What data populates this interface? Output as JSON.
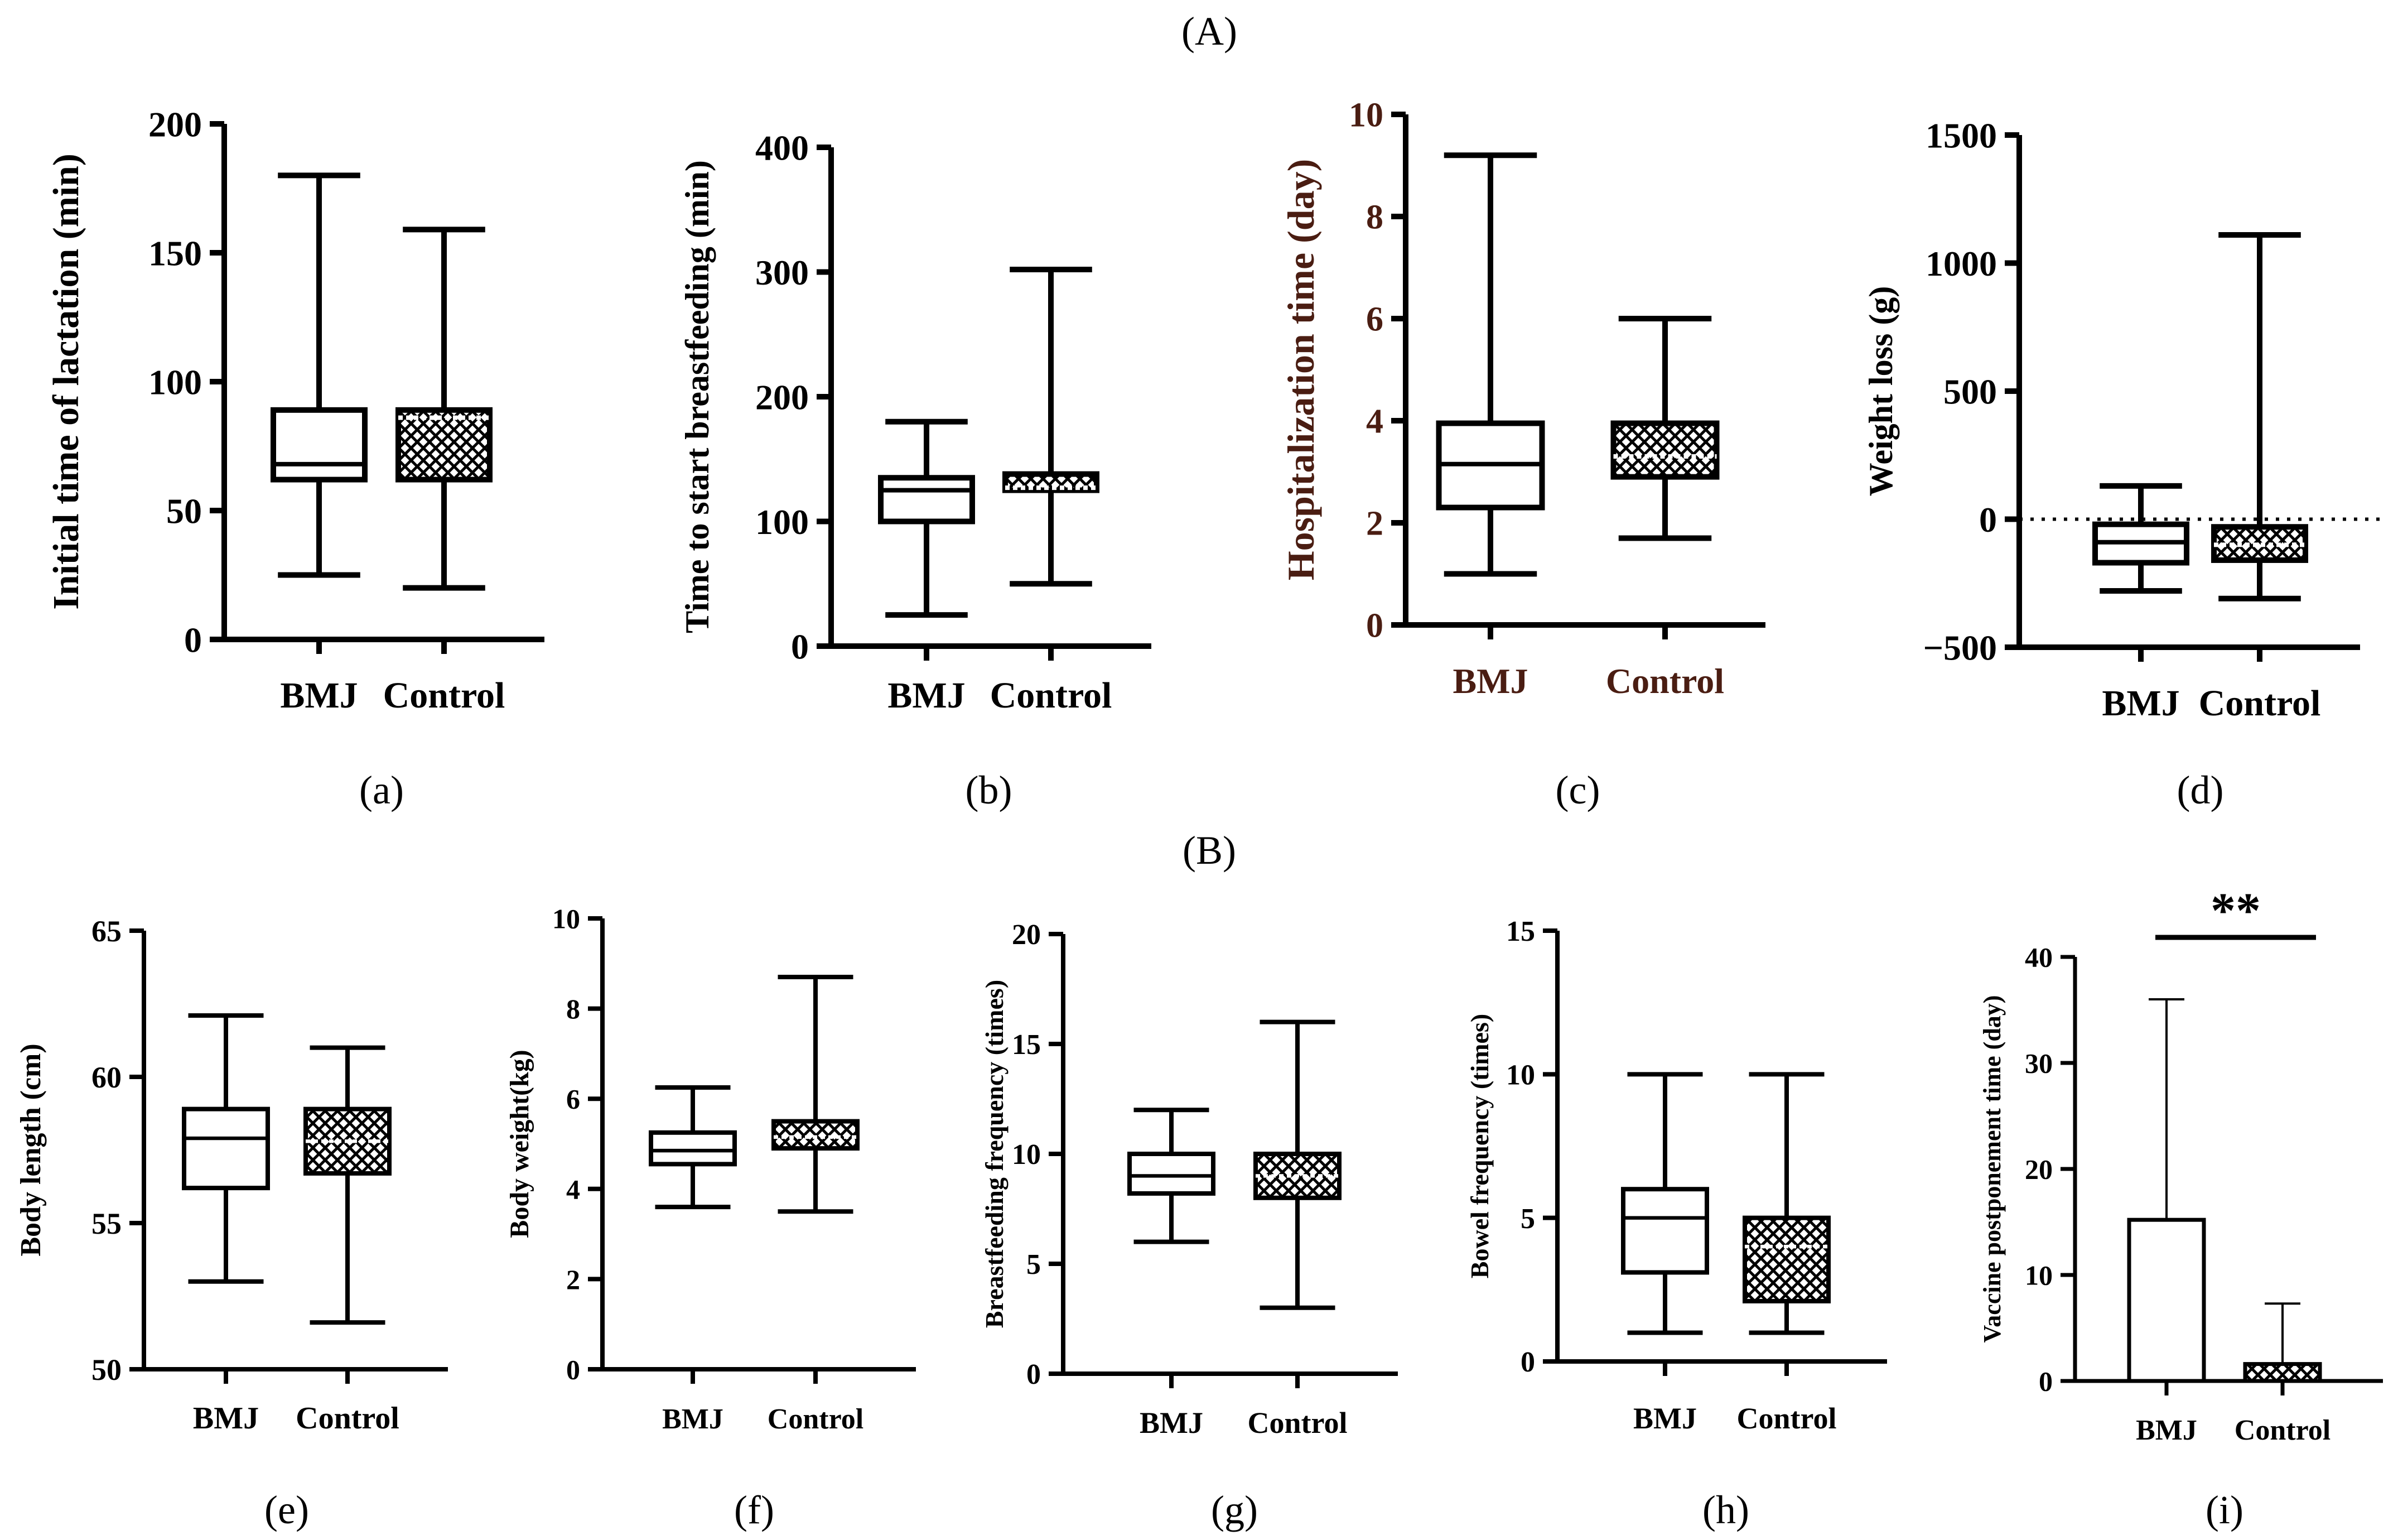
{
  "section_labels": {
    "A": "(A)",
    "B": "(B)"
  },
  "panel_labels": [
    "(a)",
    "(b)",
    "(c)",
    "(d)",
    "(e)",
    "(f)",
    "(g)",
    "(h)",
    "(i)"
  ],
  "colors": {
    "ink": "#000000",
    "panel_c_text": "#4a1d12",
    "background": "#ffffff"
  },
  "chart_data": [
    {
      "id": "a",
      "type": "box",
      "ylabel": "Initial time of lactation (min)",
      "ylim": [
        0,
        200
      ],
      "yticks": [
        0,
        50,
        100,
        150,
        200
      ],
      "categories": [
        "BMJ",
        "Control"
      ],
      "boxes": [
        {
          "name": "BMJ",
          "min": 25,
          "q1": 62,
          "median": 68,
          "q3": 89,
          "max": 180,
          "fill": "none"
        },
        {
          "name": "Control",
          "min": 20,
          "q1": 62,
          "median": 86,
          "q3": 89,
          "max": 159,
          "fill": "crosshatch"
        }
      ]
    },
    {
      "id": "b",
      "type": "box",
      "ylabel": "Time to start breastfeeding (min)",
      "ylim": [
        0,
        400
      ],
      "yticks": [
        0,
        100,
        200,
        300,
        400
      ],
      "categories": [
        "BMJ",
        "Control"
      ],
      "boxes": [
        {
          "name": "BMJ",
          "min": 25,
          "q1": 100,
          "median": 125,
          "q3": 135,
          "max": 180,
          "fill": "none"
        },
        {
          "name": "Control",
          "min": 50,
          "q1": 125,
          "median": 127,
          "q3": 138,
          "max": 302,
          "fill": "crosshatch"
        }
      ]
    },
    {
      "id": "c",
      "type": "box",
      "ylabel": "Hospitalization time (day)",
      "ylim": [
        0,
        10
      ],
      "yticks": [
        0,
        2,
        4,
        6,
        8,
        10
      ],
      "categories": [
        "BMJ",
        "Control"
      ],
      "boxes": [
        {
          "name": "BMJ",
          "min": 1,
          "q1": 2.3,
          "median": 3.15,
          "q3": 3.95,
          "max": 9.2,
          "fill": "none"
        },
        {
          "name": "Control",
          "min": 1.7,
          "q1": 2.9,
          "median": 3.3,
          "q3": 3.95,
          "max": 6,
          "fill": "crosshatch"
        }
      ]
    },
    {
      "id": "d",
      "type": "box",
      "ylabel": "Weight loss (g)",
      "ylim": [
        -500,
        1500
      ],
      "yticks": [
        -500,
        0,
        500,
        1000,
        1500
      ],
      "reference_line": 0,
      "categories": [
        "BMJ",
        "Control"
      ],
      "boxes": [
        {
          "name": "BMJ",
          "min": -280,
          "q1": -170,
          "median": -90,
          "q3": -20,
          "max": 130,
          "fill": "none"
        },
        {
          "name": "Control",
          "min": -310,
          "q1": -160,
          "median": -100,
          "q3": -30,
          "max": 1110,
          "fill": "crosshatch"
        }
      ]
    },
    {
      "id": "e",
      "type": "box",
      "ylabel": "Body length (cm)",
      "ylim": [
        50,
        65
      ],
      "yticks": [
        50,
        55,
        60,
        65
      ],
      "categories": [
        "BMJ",
        "Control"
      ],
      "boxes": [
        {
          "name": "BMJ",
          "min": 53,
          "q1": 56.2,
          "median": 57.9,
          "q3": 58.9,
          "max": 62.1,
          "fill": "none"
        },
        {
          "name": "Control",
          "min": 51.6,
          "q1": 56.7,
          "median": 57.8,
          "q3": 58.9,
          "max": 61,
          "fill": "crosshatch"
        }
      ]
    },
    {
      "id": "f",
      "type": "box",
      "ylabel": "Body weight(kg)",
      "ylim": [
        0,
        10
      ],
      "yticks": [
        0,
        2,
        4,
        6,
        8,
        10
      ],
      "categories": [
        "BMJ",
        "Control"
      ],
      "boxes": [
        {
          "name": "BMJ",
          "min": 3.6,
          "q1": 4.55,
          "median": 4.85,
          "q3": 5.25,
          "max": 6.25,
          "fill": "none"
        },
        {
          "name": "Control",
          "min": 3.5,
          "q1": 4.9,
          "median": 5.15,
          "q3": 5.5,
          "max": 8.7,
          "fill": "crosshatch"
        }
      ]
    },
    {
      "id": "g",
      "type": "box",
      "ylabel": "Breastfeeding frequency (times)",
      "ylim": [
        0,
        20
      ],
      "yticks": [
        0,
        5,
        10,
        15,
        20
      ],
      "categories": [
        "BMJ",
        "Control"
      ],
      "boxes": [
        {
          "name": "BMJ",
          "min": 6,
          "q1": 8.2,
          "median": 9,
          "q3": 10,
          "max": 12,
          "fill": "none"
        },
        {
          "name": "Control",
          "min": 3,
          "q1": 8,
          "median": 9,
          "q3": 10,
          "max": 16,
          "fill": "crosshatch"
        }
      ]
    },
    {
      "id": "h",
      "type": "box",
      "ylabel": "Bowel frequency (times)",
      "ylim": [
        0,
        15
      ],
      "yticks": [
        0,
        5,
        10,
        15
      ],
      "categories": [
        "BMJ",
        "Control"
      ],
      "boxes": [
        {
          "name": "BMJ",
          "min": 1,
          "q1": 3.1,
          "median": 5,
          "q3": 6,
          "max": 10,
          "fill": "none"
        },
        {
          "name": "Control",
          "min": 1,
          "q1": 2.1,
          "median": 4,
          "q3": 5,
          "max": 10,
          "fill": "crosshatch"
        }
      ]
    },
    {
      "id": "i",
      "type": "bar",
      "ylabel": "Vaccine postponement time (day)",
      "ylim": [
        0,
        40
      ],
      "yticks": [
        0,
        10,
        20,
        30,
        40
      ],
      "categories": [
        "BMJ",
        "Control"
      ],
      "bars": [
        {
          "name": "BMJ",
          "value": 15.2,
          "error_upper": 36,
          "fill": "none"
        },
        {
          "name": "Control",
          "value": 1.6,
          "error_upper": 7.3,
          "fill": "crosshatch"
        }
      ],
      "significance": "**"
    }
  ]
}
